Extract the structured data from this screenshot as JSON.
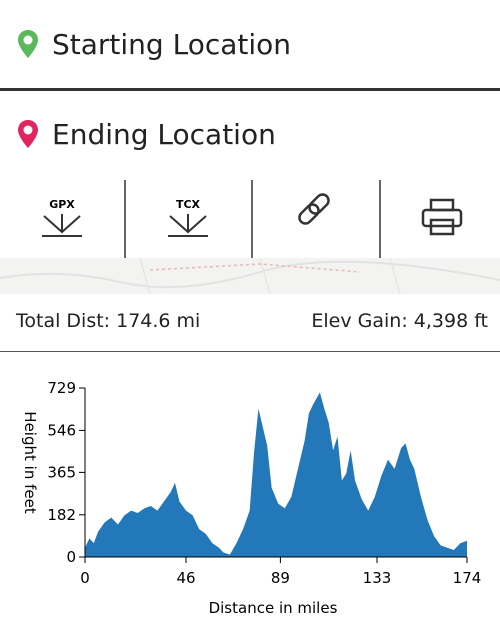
{
  "start": {
    "label": "Starting Location"
  },
  "end": {
    "label": "Ending Location"
  },
  "downloads": [
    "GPX",
    "TCX"
  ],
  "stats": {
    "distance": "Total Dist: 174.6 mi",
    "elevation": "Elev Gain: 4,398 ft"
  },
  "chart_data": {
    "type": "area",
    "xlabel": "Distance in miles",
    "ylabel": "Height in feet",
    "color": "#2378b9",
    "x": [
      0,
      2,
      4,
      6,
      9,
      12,
      15,
      18,
      21,
      24,
      27,
      30,
      33,
      36,
      39,
      41,
      43,
      46,
      49,
      52,
      55,
      58,
      61,
      63,
      66,
      69,
      72,
      75,
      77,
      79,
      81,
      83,
      85,
      88,
      91,
      94,
      97,
      100,
      102,
      104,
      107,
      109,
      111,
      113,
      115,
      117,
      119,
      121,
      123,
      126,
      129,
      132,
      135,
      138,
      141,
      144,
      146,
      148,
      150,
      153,
      156,
      159,
      162,
      165,
      168,
      171,
      174
    ],
    "values": [
      40,
      80,
      60,
      110,
      150,
      170,
      140,
      180,
      200,
      190,
      210,
      220,
      200,
      240,
      280,
      320,
      240,
      200,
      180,
      120,
      100,
      60,
      40,
      20,
      10,
      60,
      120,
      200,
      450,
      640,
      560,
      480,
      300,
      230,
      210,
      260,
      380,
      500,
      620,
      660,
      710,
      640,
      580,
      460,
      520,
      330,
      360,
      460,
      330,
      250,
      200,
      260,
      350,
      420,
      380,
      470,
      490,
      420,
      380,
      260,
      160,
      90,
      50,
      40,
      30,
      60,
      70
    ],
    "xlim": [
      0,
      174
    ],
    "ylim": [
      0,
      729
    ],
    "xticks": [
      0,
      46,
      89,
      133,
      174
    ],
    "yticks": [
      0,
      182,
      365,
      546,
      729
    ]
  }
}
